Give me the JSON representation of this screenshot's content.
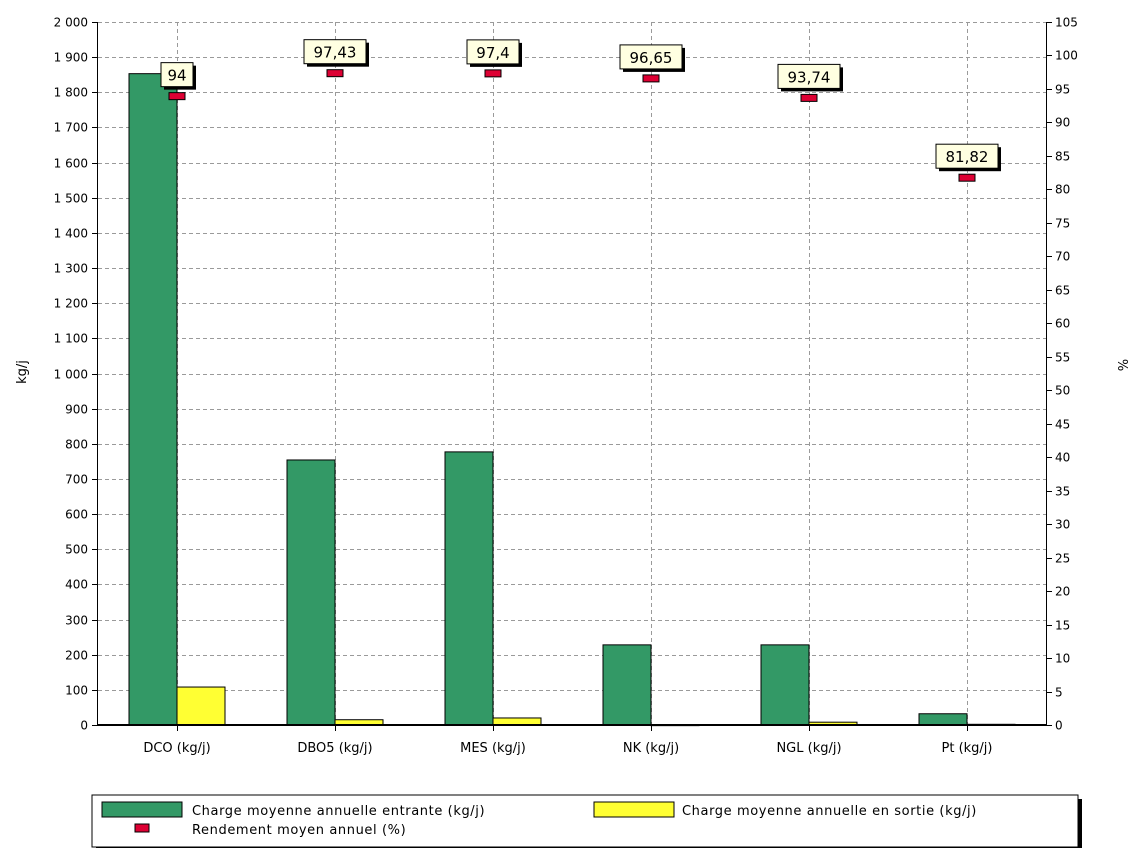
{
  "chart_data": {
    "type": "bar",
    "categories": [
      "DCO (kg/j)",
      "DBO5 (kg/j)",
      "MES (kg/j)",
      "NK (kg/j)",
      "NGL (kg/j)",
      "Pt (kg/j)"
    ],
    "series": [
      {
        "name": "Charge moyenne annuelle entrante (kg/j)",
        "axis": "left",
        "kind": "bar",
        "color": "#339966",
        "values": [
          1853,
          754,
          777,
          228,
          228,
          32
        ]
      },
      {
        "name": "Charge moyenne annuelle en sortie (kg/j)",
        "axis": "left",
        "kind": "bar",
        "color": "#ffff33",
        "values": [
          108,
          15,
          20,
          1,
          8,
          2
        ]
      },
      {
        "name": "Rendement moyen annuel (%)",
        "axis": "right",
        "kind": "marker",
        "color": "#dd0033",
        "values": [
          94,
          97.43,
          97.4,
          96.65,
          93.74,
          81.82
        ],
        "labels": [
          "94",
          "97,43",
          "97,4",
          "96,65",
          "93,74",
          "81,82"
        ]
      }
    ],
    "ylabel": "kg/j",
    "ylim": [
      0,
      2000
    ],
    "y_ticks": [
      0,
      100,
      200,
      300,
      400,
      500,
      600,
      700,
      800,
      900,
      1000,
      1100,
      1200,
      1300,
      1400,
      1500,
      1600,
      1700,
      1800,
      1900,
      2000
    ],
    "y_tick_labels": [
      "0",
      "100",
      "200",
      "300",
      "400",
      "500",
      "600",
      "700",
      "800",
      "900",
      "1 000",
      "1 100",
      "1 200",
      "1 300",
      "1 400",
      "1 500",
      "1 600",
      "1 700",
      "1 800",
      "1 900",
      "2 000"
    ],
    "y2label": "%",
    "y2lim": [
      0,
      105
    ],
    "y2_ticks": [
      0,
      5,
      10,
      15,
      20,
      25,
      30,
      35,
      40,
      45,
      50,
      55,
      60,
      65,
      70,
      75,
      80,
      85,
      90,
      95,
      100,
      105
    ],
    "grid": true,
    "legend_position": "bottom"
  }
}
